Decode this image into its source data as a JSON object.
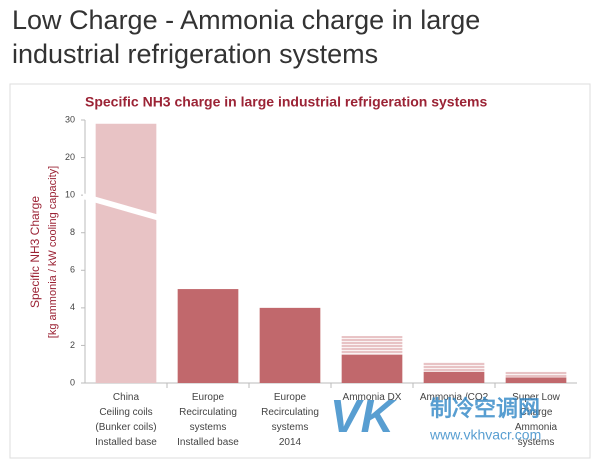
{
  "slide": {
    "title": [
      "Low Charge - Ammonia charge in large",
      "industrial refrigeration systems"
    ]
  },
  "chart_data": {
    "type": "bar",
    "title": "Specific NH3 charge in large industrial refrigeration  systems",
    "y_label": [
      "Specific NH3 Charge",
      "[kg ammonia / kW cooling capacity]"
    ],
    "categories": [
      [
        "China",
        "Ceiling coils",
        "(Bunker coils)",
        "Installed base"
      ],
      [
        "Europe",
        "Recirculating",
        "systems",
        "Installed base"
      ],
      [
        "Europe",
        "Recirculating",
        "systems",
        "2014"
      ],
      [
        "Ammonia DX"
      ],
      [
        "Ammonia /CO2"
      ],
      [
        "Super Low",
        "Charge",
        "Ammonia",
        "systems"
      ]
    ],
    "series": [
      {
        "values": [
          29,
          5,
          4,
          1.5,
          0.6,
          0.3
        ],
        "colors": [
          "#e8c3c5",
          "#c1686c",
          "#c1686c",
          "#c1686c",
          "#c1686c",
          "#c1686c"
        ]
      },
      {
        "values": [
          null,
          null,
          null,
          1,
          0.5,
          0.3
        ],
        "color": "#e8c3c5",
        "pattern": "stripes"
      }
    ],
    "ylim": [
      0,
      30
    ],
    "yticks": [
      0,
      2,
      4,
      6,
      8,
      10,
      20,
      30
    ],
    "axis_break": true
  },
  "watermark": {
    "logo": "VK",
    "name": "制冷空调网",
    "url": "www.vkhvacr.com"
  }
}
